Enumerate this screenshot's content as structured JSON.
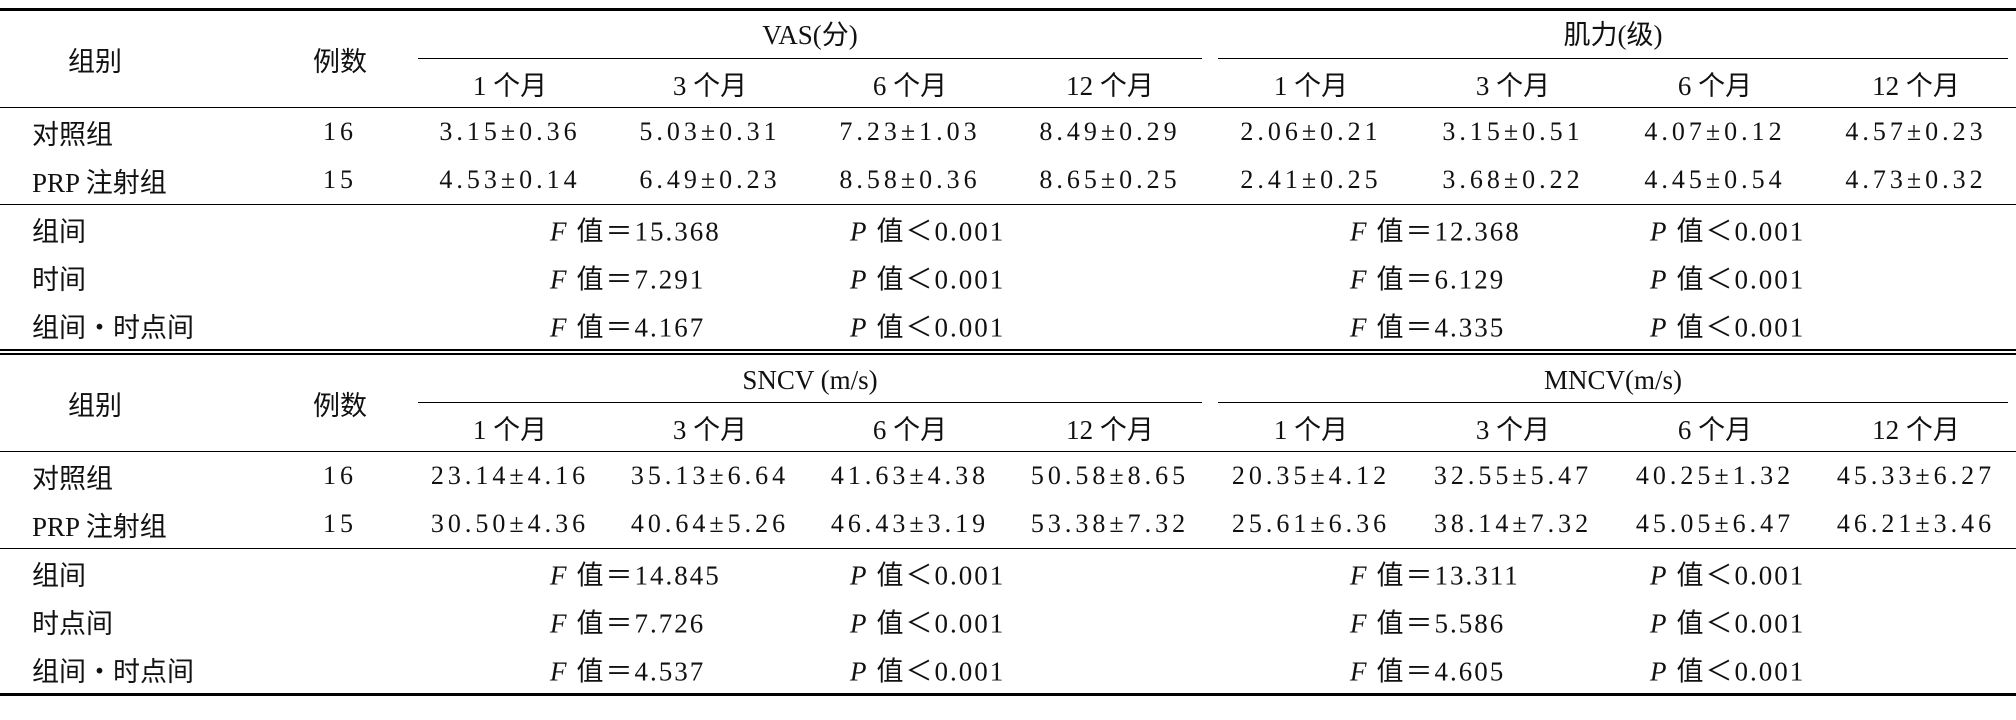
{
  "blocks": [
    {
      "header": {
        "group": "组别",
        "count": "例数",
        "groups": [
          {
            "title": "VAS(分)",
            "columns": [
              "1 个月",
              "3 个月",
              "6 个月",
              "12 个月"
            ]
          },
          {
            "title": "肌力(级)",
            "columns": [
              "1 个月",
              "3 个月",
              "6 个月",
              "12 个月"
            ]
          }
        ]
      },
      "rows": [
        {
          "label": "对照组",
          "count": "16",
          "cells": [
            "3.15±0.36",
            "5.03±0.31",
            "7.23±1.03",
            "8.49±0.29",
            "2.06±0.21",
            "3.15±0.51",
            "4.07±0.12",
            "4.57±0.23"
          ]
        },
        {
          "label": "PRP 注射组",
          "count": "15",
          "cells": [
            "4.53±0.14",
            "6.49±0.23",
            "8.58±0.36",
            "8.65±0.25",
            "2.41±0.25",
            "3.68±0.22",
            "4.45±0.54",
            "4.73±0.32"
          ]
        }
      ],
      "stats": [
        {
          "label": "组间",
          "tests": [
            {
              "f_symbol": "F",
              "f_value": "值＝15.368",
              "p_symbol": "P",
              "p_value": "值＜0.001"
            },
            {
              "f_symbol": "F",
              "f_value": "值＝12.368",
              "p_symbol": "P",
              "p_value": "值＜0.001"
            }
          ]
        },
        {
          "label": "时间",
          "tests": [
            {
              "f_symbol": "F",
              "f_value": "值＝7.291",
              "p_symbol": "P",
              "p_value": "值＜0.001"
            },
            {
              "f_symbol": "F",
              "f_value": "值＝6.129",
              "p_symbol": "P",
              "p_value": "值＜0.001"
            }
          ]
        },
        {
          "label": "组间・时点间",
          "tests": [
            {
              "f_symbol": "F",
              "f_value": "值＝4.167",
              "p_symbol": "P",
              "p_value": "值＜0.001"
            },
            {
              "f_symbol": "F",
              "f_value": "值＝4.335",
              "p_symbol": "P",
              "p_value": "值＜0.001"
            }
          ]
        }
      ]
    },
    {
      "header": {
        "group": "组别",
        "count": "例数",
        "groups": [
          {
            "title": "SNCV (m/s)",
            "columns": [
              "1 个月",
              "3 个月",
              "6 个月",
              "12 个月"
            ]
          },
          {
            "title": "MNCV(m/s)",
            "columns": [
              "1 个月",
              "3 个月",
              "6 个月",
              "12 个月"
            ]
          }
        ]
      },
      "rows": [
        {
          "label": "对照组",
          "count": "16",
          "cells": [
            "23.14±4.16",
            "35.13±6.64",
            "41.63±4.38",
            "50.58±8.65",
            "20.35±4.12",
            "32.55±5.47",
            "40.25±1.32",
            "45.33±6.27"
          ]
        },
        {
          "label": "PRP 注射组",
          "count": "15",
          "cells": [
            "30.50±4.36",
            "40.64±5.26",
            "46.43±3.19",
            "53.38±7.32",
            "25.61±6.36",
            "38.14±7.32",
            "45.05±6.47",
            "46.21±3.46"
          ]
        }
      ],
      "stats": [
        {
          "label": "组间",
          "tests": [
            {
              "f_symbol": "F",
              "f_value": "值＝14.845",
              "p_symbol": "P",
              "p_value": "值＜0.001"
            },
            {
              "f_symbol": "F",
              "f_value": "值＝13.311",
              "p_symbol": "P",
              "p_value": "值＜0.001"
            }
          ]
        },
        {
          "label": "时点间",
          "tests": [
            {
              "f_symbol": "F",
              "f_value": "值＝7.726",
              "p_symbol": "P",
              "p_value": "值＜0.001"
            },
            {
              "f_symbol": "F",
              "f_value": "值＝5.586",
              "p_symbol": "P",
              "p_value": "值＜0.001"
            }
          ]
        },
        {
          "label": "组间・时点间",
          "tests": [
            {
              "f_symbol": "F",
              "f_value": "值＝4.537",
              "p_symbol": "P",
              "p_value": "值＜0.001"
            },
            {
              "f_symbol": "F",
              "f_value": "值＝4.605",
              "p_symbol": "P",
              "p_value": "值＜0.001"
            }
          ]
        }
      ]
    }
  ]
}
